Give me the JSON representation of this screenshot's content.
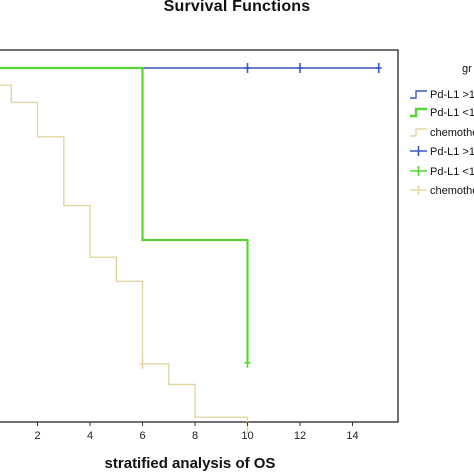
{
  "chart_data": {
    "type": "line",
    "title": "Survival Functions",
    "xlabel": "stratified analysis of OS",
    "ylabel": "",
    "xlim": [
      0,
      16.5
    ],
    "ylim": [
      0,
      1.0
    ],
    "x_ticks": [
      "2",
      "4",
      "6",
      "8",
      "10",
      "12",
      "14"
    ],
    "legend_title": "gr",
    "legend_position": "right",
    "legend_entries": [
      "Pd-L1 >1",
      "Pd-L1 <1",
      "chemothe",
      "Pd-L1 >1",
      "Pd-L1 <1",
      "chemothe"
    ],
    "series": [
      {
        "name": "Pd-L1 >1",
        "color": "#3b57c4",
        "step_points": [
          [
            0,
            1.0
          ],
          [
            15,
            1.0
          ]
        ],
        "censored": [
          10,
          12,
          15
        ],
        "censored_y": 1.0
      },
      {
        "name": "Pd-L1 <1",
        "color": "#55d633",
        "step_points": [
          [
            0,
            1.0
          ],
          [
            6,
            1.0
          ],
          [
            6,
            0.5
          ],
          [
            10,
            0.5
          ],
          [
            10,
            0.143
          ]
        ],
        "censored": [
          10
        ],
        "censored_y": 0.143
      },
      {
        "name": "chemothe",
        "color": "#e0d7a4",
        "step_points": [
          [
            0,
            0.95
          ],
          [
            1,
            0.95
          ],
          [
            1,
            0.9
          ],
          [
            2,
            0.9
          ],
          [
            2,
            0.8
          ],
          [
            3,
            0.8
          ],
          [
            3,
            0.6
          ],
          [
            4,
            0.6
          ],
          [
            4,
            0.45
          ],
          [
            5,
            0.45
          ],
          [
            5,
            0.38
          ],
          [
            6,
            0.38
          ],
          [
            6,
            0.14
          ],
          [
            7,
            0.14
          ],
          [
            7,
            0.08
          ],
          [
            8,
            0.08
          ],
          [
            8,
            -0.015
          ],
          [
            10,
            -0.015
          ],
          [
            10,
            -0.065
          ]
        ],
        "censored": [
          6
        ],
        "censored_y": 0.14
      }
    ]
  }
}
